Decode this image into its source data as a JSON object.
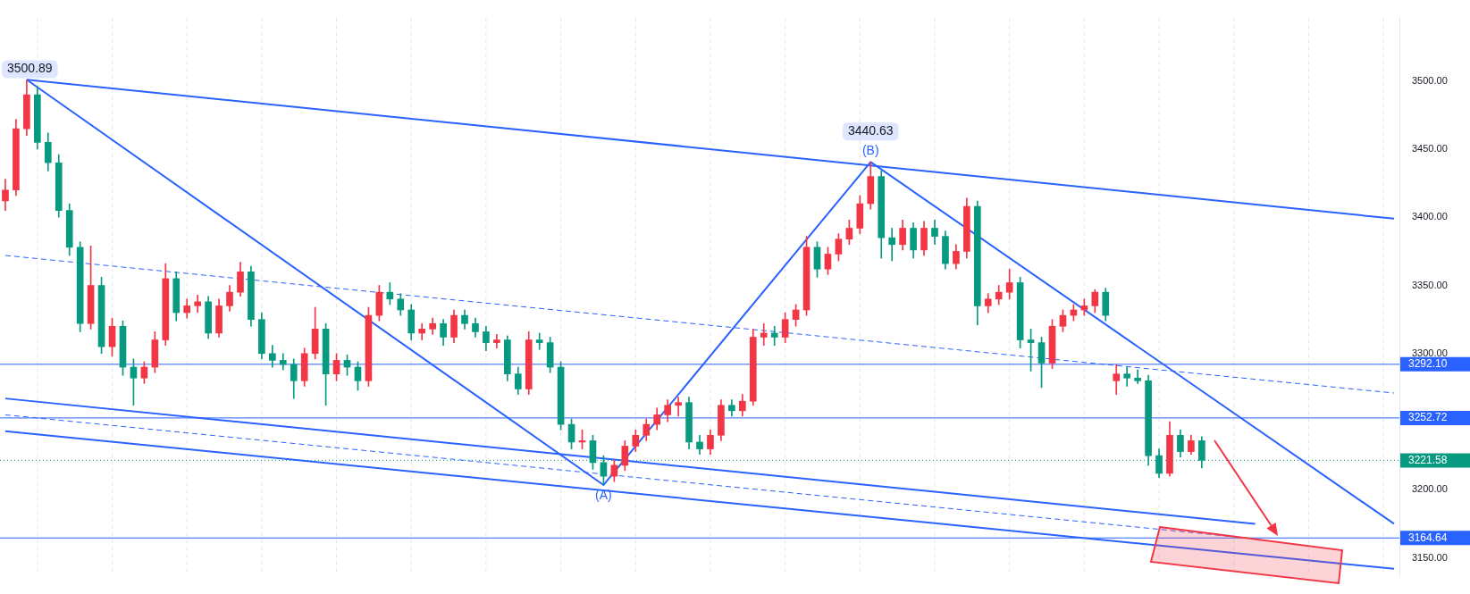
{
  "chart_data": {
    "type": "candlestick",
    "categories": [
      null,
      null,
      null,
      null,
      null,
      null,
      null,
      null,
      null,
      null,
      null,
      null,
      null,
      null,
      null,
      null,
      null,
      null,
      null,
      null,
      null,
      null,
      null,
      null,
      null,
      null,
      null,
      null,
      null,
      null,
      null,
      null,
      null,
      null,
      null,
      null,
      null,
      null,
      null,
      null,
      null,
      null,
      null,
      null,
      null,
      null,
      null,
      null,
      null,
      null,
      null,
      null,
      null,
      null,
      null,
      null,
      null,
      null,
      null,
      null,
      null,
      null,
      null,
      null,
      null,
      null,
      null,
      null,
      null,
      null,
      null,
      null,
      null,
      null,
      null,
      null,
      null,
      null,
      null,
      null,
      null,
      null,
      null,
      null,
      null,
      null,
      null,
      null,
      null,
      null,
      null,
      null,
      null,
      null,
      null,
      null,
      null,
      null,
      null,
      null,
      null,
      null,
      null,
      null,
      null,
      null,
      null,
      null,
      null,
      null,
      null,
      null,
      null,
      null,
      null,
      null,
      null,
      null,
      null,
      null,
      null,
      null,
      null,
      null,
      null,
      null,
      null,
      null,
      null,
      null,
      null
    ],
    "ohlc": [
      [
        3412,
        3428,
        3405,
        3420
      ],
      [
        3420,
        3472,
        3416,
        3465
      ],
      [
        3465,
        3500.89,
        3460,
        3490
      ],
      [
        3490,
        3496,
        3450,
        3455
      ],
      [
        3455,
        3462,
        3434,
        3440
      ],
      [
        3440,
        3446,
        3400,
        3405
      ],
      [
        3405,
        3410,
        3372,
        3378
      ],
      [
        3378,
        3382,
        3316,
        3322
      ],
      [
        3322,
        3379,
        3318,
        3350
      ],
      [
        3350,
        3356,
        3300,
        3305
      ],
      [
        3305,
        3326,
        3298,
        3320
      ],
      [
        3320,
        3324,
        3284,
        3290
      ],
      [
        3290,
        3296,
        3262,
        3282
      ],
      [
        3282,
        3294,
        3278,
        3290
      ],
      [
        3290,
        3316,
        3286,
        3310
      ],
      [
        3310,
        3366,
        3306,
        3355
      ],
      [
        3355,
        3360,
        3324,
        3330
      ],
      [
        3330,
        3340,
        3326,
        3335
      ],
      [
        3335,
        3343,
        3330,
        3338
      ],
      [
        3338,
        3342,
        3311,
        3315
      ],
      [
        3315,
        3340,
        3312,
        3335
      ],
      [
        3335,
        3350,
        3331,
        3345
      ],
      [
        3345,
        3367,
        3342,
        3360
      ],
      [
        3360,
        3364,
        3320,
        3325
      ],
      [
        3325,
        3330,
        3296,
        3300
      ],
      [
        3300,
        3306,
        3290,
        3295
      ],
      [
        3295,
        3300,
        3288,
        3292
      ],
      [
        3292,
        3296,
        3267,
        3280
      ],
      [
        3280,
        3304,
        3276,
        3300
      ],
      [
        3300,
        3334,
        3296,
        3318
      ],
      [
        3318,
        3322,
        3262,
        3285
      ],
      [
        3285,
        3300,
        3280,
        3295
      ],
      [
        3295,
        3299,
        3284,
        3290
      ],
      [
        3290,
        3294,
        3273,
        3280
      ],
      [
        3280,
        3334,
        3276,
        3328
      ],
      [
        3328,
        3350,
        3324,
        3345
      ],
      [
        3345,
        3352,
        3336,
        3340
      ],
      [
        3340,
        3344,
        3328,
        3332
      ],
      [
        3332,
        3336,
        3310,
        3315
      ],
      [
        3315,
        3322,
        3310,
        3318
      ],
      [
        3318,
        3326,
        3314,
        3322
      ],
      [
        3322,
        3325,
        3306,
        3312
      ],
      [
        3312,
        3332,
        3308,
        3328
      ],
      [
        3328,
        3332,
        3318,
        3322
      ],
      [
        3322,
        3326,
        3312,
        3316
      ],
      [
        3316,
        3320,
        3302,
        3308
      ],
      [
        3308,
        3314,
        3304,
        3310
      ],
      [
        3310,
        3313,
        3280,
        3285
      ],
      [
        3285,
        3290,
        3270,
        3274
      ],
      [
        3274,
        3316,
        3270,
        3310
      ],
      [
        3310,
        3315,
        3303,
        3308
      ],
      [
        3308,
        3312,
        3286,
        3290
      ],
      [
        3290,
        3294,
        3244,
        3248
      ],
      [
        3248,
        3252,
        3230,
        3235
      ],
      [
        3235,
        3244,
        3230,
        3236
      ],
      [
        3236,
        3240,
        3215,
        3220
      ],
      [
        3220,
        3225,
        3203.5,
        3210
      ],
      [
        3210,
        3222,
        3206,
        3218
      ],
      [
        3218,
        3236,
        3214,
        3232
      ],
      [
        3232,
        3244,
        3228,
        3240
      ],
      [
        3240,
        3252,
        3236,
        3248
      ],
      [
        3248,
        3260,
        3244,
        3255
      ],
      [
        3255,
        3266,
        3250,
        3262
      ],
      [
        3262,
        3268,
        3254,
        3264
      ],
      [
        3264,
        3268,
        3230,
        3235
      ],
      [
        3235,
        3240,
        3226,
        3230
      ],
      [
        3230,
        3244,
        3226,
        3240
      ],
      [
        3240,
        3266,
        3236,
        3262
      ],
      [
        3262,
        3266,
        3254,
        3258
      ],
      [
        3258,
        3270,
        3254,
        3265
      ],
      [
        3265,
        3318,
        3262,
        3312
      ],
      [
        3312,
        3322,
        3306,
        3315
      ],
      [
        3315,
        3320,
        3306,
        3312
      ],
      [
        3312,
        3330,
        3308,
        3325
      ],
      [
        3325,
        3336,
        3320,
        3332
      ],
      [
        3332,
        3386,
        3328,
        3378
      ],
      [
        3378,
        3382,
        3356,
        3362
      ],
      [
        3362,
        3378,
        3358,
        3373
      ],
      [
        3373,
        3388,
        3368,
        3384
      ],
      [
        3384,
        3398,
        3380,
        3392
      ],
      [
        3392,
        3416,
        3388,
        3410
      ],
      [
        3410,
        3440.63,
        3406,
        3430
      ],
      [
        3430,
        3434,
        3370,
        3385
      ],
      [
        3385,
        3392,
        3368,
        3380
      ],
      [
        3380,
        3398,
        3376,
        3392
      ],
      [
        3392,
        3396,
        3370,
        3376
      ],
      [
        3376,
        3397,
        3372,
        3392
      ],
      [
        3392,
        3398,
        3380,
        3386
      ],
      [
        3386,
        3390,
        3362,
        3366
      ],
      [
        3366,
        3380,
        3362,
        3375
      ],
      [
        3375,
        3414,
        3370,
        3408
      ],
      [
        3408,
        3412,
        3321,
        3335
      ],
      [
        3335,
        3344,
        3330,
        3340
      ],
      [
        3340,
        3350,
        3336,
        3345
      ],
      [
        3345,
        3362,
        3340,
        3352
      ],
      [
        3352,
        3356,
        3304,
        3310
      ],
      [
        3310,
        3318,
        3287,
        3308
      ],
      [
        3308,
        3312,
        3275,
        3293
      ],
      [
        3293,
        3325,
        3289,
        3320
      ],
      [
        3320,
        3332,
        3316,
        3328
      ],
      [
        3328,
        3336,
        3324,
        3332
      ],
      [
        3332,
        3340,
        3328,
        3335
      ],
      [
        3335,
        3347,
        3330,
        3345
      ],
      [
        3345,
        3348,
        3324,
        3328
      ],
      [
        3280,
        3292,
        3270,
        3285
      ],
      [
        3285,
        3290,
        3276,
        3282
      ],
      [
        3282,
        3288,
        3278,
        3280
      ],
      [
        3280,
        3284,
        3218,
        3225
      ],
      [
        3225,
        3230,
        3209,
        3212
      ],
      [
        3212,
        3250,
        3210,
        3240
      ],
      [
        3240,
        3244,
        3224,
        3228
      ],
      [
        3228,
        3240,
        3226,
        3236
      ],
      [
        3236,
        3239,
        3216,
        3221.58
      ],
      null,
      null,
      null,
      null,
      null,
      null,
      null,
      null,
      null,
      null,
      null,
      null,
      null,
      null,
      null,
      null,
      null,
      null
    ],
    "colors": [
      "#f23645",
      "#f23645",
      "#f23645",
      "#089981",
      "#089981",
      "#089981",
      "#089981",
      "#089981",
      "#f23645",
      "#089981",
      "#f23645",
      "#089981",
      "#089981",
      "#f23645",
      "#f23645",
      "#f23645",
      "#089981",
      "#f23645",
      "#f23645",
      "#089981",
      "#f23645",
      "#f23645",
      "#f23645",
      "#089981",
      "#089981",
      "#089981",
      "#089981",
      "#089981",
      "#f23645",
      "#f23645",
      "#089981",
      "#f23645",
      "#089981",
      "#089981",
      "#f23645",
      "#f23645",
      "#089981",
      "#089981",
      "#089981",
      "#f23645",
      "#f23645",
      "#089981",
      "#f23645",
      "#089981",
      "#089981",
      "#089981",
      "#f23645",
      "#089981",
      "#089981",
      "#f23645",
      "#089981",
      "#089981",
      "#089981",
      "#089981",
      "#f23645",
      "#089981",
      "#089981",
      "#f23645",
      "#f23645",
      "#f23645",
      "#f23645",
      "#f23645",
      "#f23645",
      "#f23645",
      "#089981",
      "#089981",
      "#f23645",
      "#f23645",
      "#089981",
      "#f23645",
      "#f23645",
      "#f23645",
      "#089981",
      "#f23645",
      "#f23645",
      "#f23645",
      "#089981",
      "#f23645",
      "#f23645",
      "#f23645",
      "#f23645",
      "#f23645",
      "#089981",
      "#089981",
      "#f23645",
      "#089981",
      "#f23645",
      "#089981",
      "#089981",
      "#f23645",
      "#f23645",
      "#089981",
      "#f23645",
      "#f23645",
      "#f23645",
      "#089981",
      "#089981",
      "#089981",
      "#f23645",
      "#f23645",
      "#f23645",
      "#f23645",
      "#f23645",
      "#089981",
      "#f23645",
      "#089981",
      "#089981",
      "#089981",
      "#089981",
      "#f23645",
      "#089981",
      "#f23645",
      "#089981",
      null,
      null,
      null,
      null,
      null,
      null,
      null,
      null,
      null,
      null,
      null,
      null,
      null,
      null,
      null,
      null,
      null,
      null
    ],
    "series": [
      {
        "type": "line",
        "color": "#2962ff",
        "line_style": "solid",
        "values": [
          null,
          null,
          3501,
          null,
          null,
          null,
          null,
          null,
          null,
          null,
          null,
          null,
          null,
          null,
          null,
          null,
          null,
          null,
          null,
          null,
          null,
          null,
          null,
          null,
          null,
          null,
          null,
          null,
          null,
          null,
          null,
          null,
          null,
          null,
          null,
          null,
          null,
          null,
          null,
          null,
          null,
          null,
          null,
          null,
          null,
          null,
          null,
          null,
          null,
          null,
          null,
          null,
          null,
          null,
          null,
          null,
          null,
          null,
          null,
          null,
          null,
          null,
          null,
          null,
          null,
          null,
          null,
          null,
          null,
          null,
          null,
          null,
          null,
          null,
          null,
          null,
          null,
          null,
          null,
          null,
          null,
          null,
          null,
          null,
          null,
          null,
          null,
          null,
          null,
          null,
          null,
          null,
          null,
          null,
          null,
          null,
          null,
          null,
          null,
          null,
          null,
          null,
          null,
          null,
          null,
          null,
          null,
          null,
          null,
          null,
          null,
          null,
          null,
          null,
          null,
          null,
          null,
          null,
          null,
          null,
          null,
          null,
          null,
          null,
          null,
          null,
          null,
          null,
          null,
          null,
          3399
        ]
      },
      {
        "type": "line",
        "color": "#2962ff",
        "line_style": "solid",
        "values": [
          null,
          null,
          3501,
          null,
          null,
          null,
          null,
          null,
          null,
          null,
          null,
          null,
          null,
          null,
          null,
          null,
          null,
          null,
          null,
          null,
          null,
          null,
          null,
          null,
          null,
          null,
          null,
          null,
          null,
          null,
          null,
          null,
          null,
          null,
          null,
          null,
          null,
          null,
          null,
          null,
          null,
          null,
          null,
          null,
          null,
          null,
          null,
          null,
          null,
          null,
          null,
          null,
          null,
          null,
          null,
          null,
          3203.5,
          null,
          null,
          null,
          null,
          null,
          null,
          null,
          null,
          null,
          null,
          null,
          null,
          null,
          null,
          null,
          null,
          null,
          null,
          null,
          null,
          null,
          null,
          null,
          null,
          3440.63,
          null,
          null,
          null,
          null,
          null,
          null,
          null,
          null,
          null,
          null,
          null,
          null,
          null,
          null,
          null,
          null,
          null,
          null,
          null,
          null,
          null,
          null,
          null,
          null,
          null,
          null,
          null,
          null,
          null,
          null,
          null,
          null,
          null,
          null,
          null,
          null,
          null,
          null,
          null,
          null,
          null,
          null,
          null,
          null,
          null,
          null,
          null,
          null,
          3175
        ]
      },
      {
        "type": "line",
        "color": "#2962ff",
        "line_style": "dashed",
        "values": [
          3372,
          null,
          null,
          null,
          null,
          null,
          null,
          null,
          null,
          null,
          null,
          null,
          null,
          null,
          null,
          null,
          null,
          null,
          null,
          null,
          null,
          null,
          null,
          null,
          null,
          null,
          null,
          null,
          null,
          null,
          null,
          null,
          null,
          null,
          null,
          null,
          null,
          null,
          null,
          null,
          null,
          null,
          null,
          null,
          null,
          null,
          null,
          null,
          null,
          null,
          null,
          null,
          null,
          null,
          null,
          null,
          null,
          null,
          null,
          null,
          null,
          null,
          null,
          null,
          null,
          null,
          null,
          null,
          null,
          null,
          null,
          null,
          null,
          null,
          null,
          null,
          null,
          null,
          null,
          null,
          null,
          null,
          null,
          null,
          null,
          null,
          null,
          null,
          null,
          null,
          null,
          null,
          null,
          null,
          null,
          null,
          null,
          null,
          null,
          null,
          null,
          null,
          null,
          null,
          null,
          null,
          null,
          null,
          null,
          null,
          null,
          null,
          null,
          null,
          null,
          null,
          null,
          null,
          null,
          null,
          null,
          null,
          null,
          null,
          null,
          null,
          null,
          null,
          null,
          null,
          3271
        ]
      },
      {
        "type": "line",
        "color": "#2962ff",
        "line_style": "solid",
        "values": [
          3267,
          null,
          null,
          null,
          null,
          null,
          null,
          null,
          null,
          null,
          null,
          null,
          null,
          null,
          null,
          null,
          null,
          null,
          null,
          null,
          null,
          null,
          null,
          null,
          null,
          null,
          null,
          null,
          null,
          null,
          null,
          null,
          null,
          null,
          null,
          null,
          null,
          null,
          null,
          null,
          null,
          null,
          null,
          null,
          null,
          null,
          null,
          null,
          null,
          null,
          null,
          null,
          null,
          null,
          null,
          null,
          null,
          null,
          null,
          null,
          null,
          null,
          null,
          null,
          null,
          null,
          null,
          null,
          null,
          null,
          null,
          null,
          null,
          null,
          null,
          null,
          null,
          null,
          null,
          null,
          null,
          null,
          null,
          null,
          null,
          null,
          null,
          null,
          null,
          null,
          null,
          null,
          null,
          null,
          null,
          null,
          null,
          null,
          null,
          null,
          null,
          null,
          null,
          null,
          null,
          null,
          null,
          null,
          null,
          null,
          null,
          null,
          null,
          null,
          null,
          null,
          null,
          3175,
          null,
          null,
          null,
          null,
          null,
          null,
          null,
          null,
          null,
          null,
          null,
          null,
          null
        ]
      },
      {
        "type": "line",
        "color": "#2962ff",
        "line_style": "dashed",
        "values": [
          3255,
          null,
          null,
          null,
          null,
          null,
          null,
          null,
          null,
          null,
          null,
          null,
          null,
          null,
          null,
          null,
          null,
          null,
          null,
          null,
          null,
          null,
          null,
          null,
          null,
          null,
          null,
          null,
          null,
          null,
          null,
          null,
          null,
          null,
          null,
          null,
          null,
          null,
          null,
          null,
          null,
          null,
          null,
          null,
          null,
          null,
          null,
          null,
          null,
          null,
          null,
          null,
          null,
          null,
          null,
          null,
          null,
          null,
          null,
          null,
          null,
          null,
          null,
          null,
          null,
          null,
          null,
          null,
          null,
          null,
          null,
          null,
          null,
          null,
          null,
          null,
          null,
          null,
          null,
          null,
          null,
          null,
          null,
          null,
          null,
          null,
          null,
          null,
          null,
          null,
          null,
          null,
          null,
          null,
          null,
          null,
          null,
          null,
          null,
          null,
          null,
          null,
          null,
          null,
          null,
          null,
          null,
          null,
          null,
          null,
          null,
          null,
          null,
          null,
          null,
          null,
          null,
          3164,
          null,
          null,
          null,
          null,
          null,
          null,
          null,
          null,
          null,
          null,
          null,
          null,
          null
        ]
      },
      {
        "type": "line",
        "color": "#2962ff",
        "line_style": "solid",
        "values": [
          3243,
          null,
          null,
          null,
          null,
          null,
          null,
          null,
          null,
          null,
          null,
          null,
          null,
          null,
          null,
          null,
          null,
          null,
          null,
          null,
          null,
          null,
          null,
          null,
          null,
          null,
          null,
          null,
          null,
          null,
          null,
          null,
          null,
          null,
          null,
          null,
          null,
          null,
          null,
          null,
          null,
          null,
          null,
          null,
          null,
          null,
          null,
          null,
          null,
          null,
          null,
          null,
          null,
          null,
          null,
          null,
          null,
          null,
          null,
          null,
          null,
          null,
          null,
          null,
          null,
          null,
          null,
          null,
          null,
          null,
          null,
          null,
          null,
          null,
          null,
          null,
          null,
          null,
          null,
          null,
          null,
          null,
          null,
          null,
          null,
          null,
          null,
          null,
          null,
          null,
          null,
          null,
          null,
          null,
          null,
          null,
          null,
          null,
          null,
          null,
          null,
          null,
          null,
          null,
          null,
          null,
          null,
          null,
          null,
          null,
          null,
          null,
          null,
          null,
          null,
          null,
          null,
          null,
          null,
          null,
          null,
          null,
          null,
          null,
          null,
          null,
          null,
          null,
          null,
          null,
          3142
        ]
      }
    ],
    "ylim": [
      3137,
      3546
    ],
    "yticks": [
      {
        "value": 3150,
        "label": "3150.00"
      },
      {
        "value": 3200,
        "label": "3200.00"
      },
      {
        "value": 3300,
        "label": "3300.00"
      },
      {
        "value": 3350,
        "label": "3350.00"
      },
      {
        "value": 3400,
        "label": "3400.00"
      },
      {
        "value": 3450,
        "label": "3450.00"
      },
      {
        "value": 3500,
        "label": "3500.00"
      }
    ],
    "tick_labels": "y",
    "grid": "x",
    "marker": "none",
    "ref_lines": [
      {
        "axis": "y",
        "value": 3292.1,
        "label": "3292.10",
        "color": "#2962ff",
        "line_style": "solid"
      },
      {
        "axis": "y",
        "value": 3252.72,
        "label": "3252.72",
        "color": "#2962ff",
        "line_style": "solid"
      },
      {
        "axis": "y",
        "value": 3221.58,
        "label": "3221.58",
        "color": "#089981",
        "line_style": "dotted"
      },
      {
        "axis": "y",
        "value": 3164.64,
        "label": "3164.64",
        "color": "#2962ff",
        "line_style": "solid"
      }
    ],
    "annotations": [
      {
        "text": "3500.89",
        "y": 3500.89
      },
      {
        "text": "(B)",
        "y": 3440.63
      },
      {
        "text": "3440.63",
        "y": 3440.63
      },
      {
        "text": "(A)",
        "y": 3203.5
      }
    ]
  }
}
